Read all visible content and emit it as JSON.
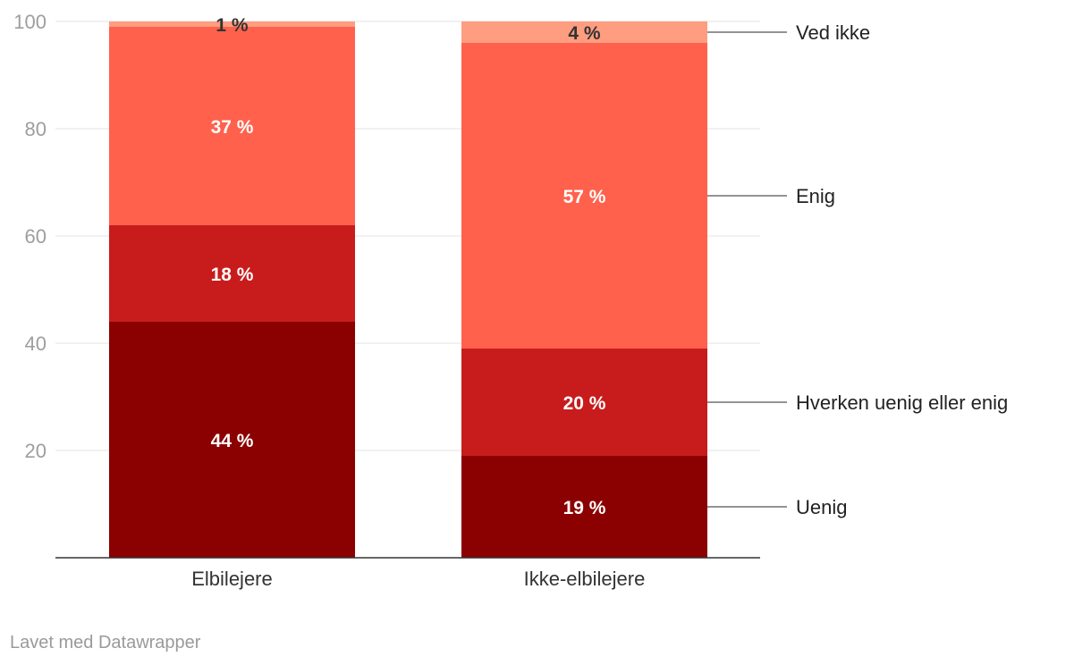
{
  "chart_data": {
    "type": "bar",
    "stacked": true,
    "categories": [
      "Elbilejere",
      "Ikke-elbilejere"
    ],
    "series": [
      {
        "name": "Uenig",
        "values": [
          44,
          19
        ],
        "labels": [
          "44 %",
          "19 %"
        ],
        "color": "#8b0000"
      },
      {
        "name": "Hverken uenig eller enig",
        "values": [
          18,
          20
        ],
        "labels": [
          "18 %",
          "20 %"
        ],
        "color": "#c81c1c"
      },
      {
        "name": "Enig",
        "values": [
          37,
          57
        ],
        "labels": [
          "37 %",
          "57 %"
        ],
        "color": "#ff614c"
      },
      {
        "name": "Ved ikke",
        "values": [
          1,
          4
        ],
        "labels": [
          "1 %",
          "4 %"
        ],
        "color": "#ff9d80"
      }
    ],
    "yticks": [
      "20",
      "40",
      "60",
      "80",
      "100"
    ],
    "ylim": [
      0,
      100
    ],
    "grid": true,
    "legend": "right, direct labels"
  },
  "footer": {
    "credit": "Lavet med Datawrapper"
  }
}
